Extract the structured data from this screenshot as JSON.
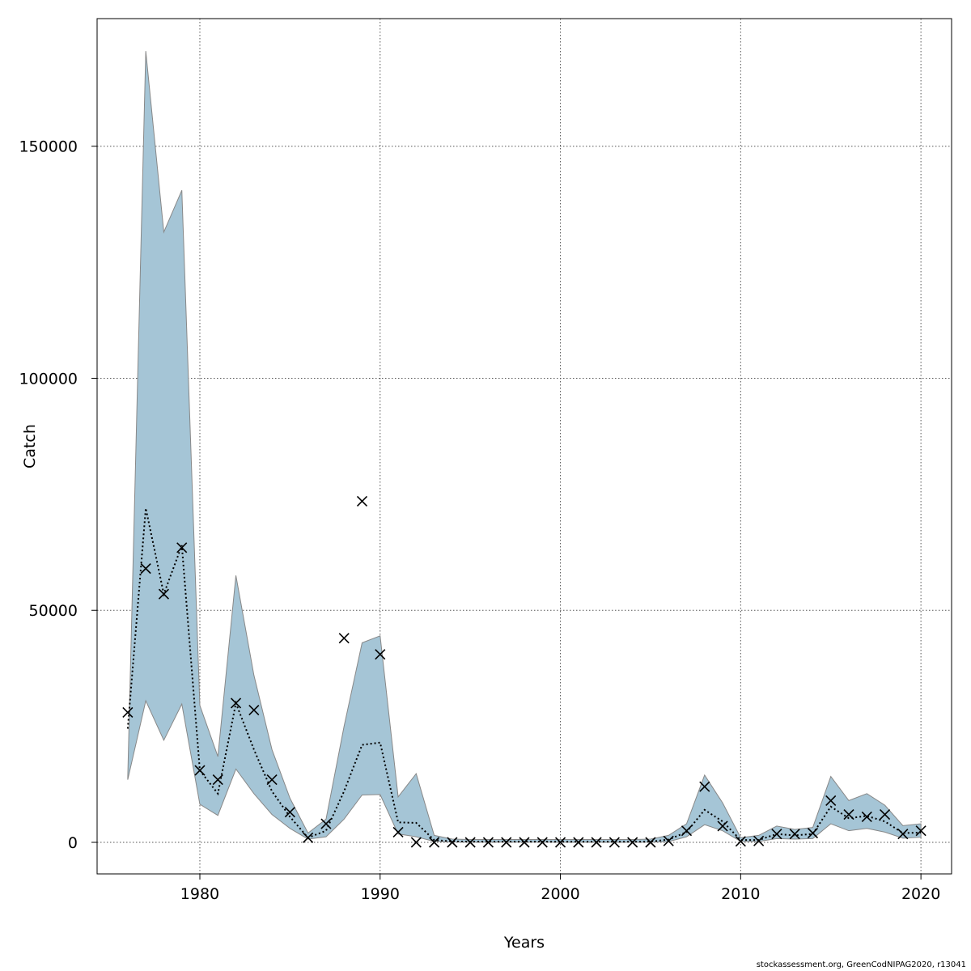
{
  "chart_data": {
    "type": "line",
    "xlabel": "Years",
    "ylabel": "Catch",
    "xlim": [
      1974.3,
      2021.7
    ],
    "ylim": [
      -6800,
      177500
    ],
    "x_ticks": [
      1980,
      1990,
      2000,
      2010,
      2020
    ],
    "y_ticks": [
      0,
      50000,
      100000,
      150000
    ],
    "grid": true,
    "colors": {
      "band": "#a5c5d6",
      "band_edge": "#888888",
      "line": "#000000",
      "grid": "#555555"
    },
    "series": [
      {
        "kind": "band",
        "x": [
          1976,
          1977,
          1978,
          1979,
          1980,
          1981,
          1982,
          1983,
          1984,
          1985,
          1986,
          1987,
          1988,
          1989,
          1990,
          1991,
          1992,
          1993,
          1994,
          1995,
          1996,
          1997,
          1998,
          1999,
          2000,
          2001,
          2002,
          2003,
          2004,
          2005,
          2006,
          2007,
          2008,
          2009,
          2010,
          2011,
          2012,
          2013,
          2014,
          2015,
          2016,
          2017,
          2018,
          2019,
          2020
        ],
        "lower": [
          13500,
          30500,
          22000,
          29800,
          8200,
          5800,
          15800,
          10500,
          6000,
          3000,
          700,
          1200,
          5000,
          10200,
          10300,
          1800,
          1200,
          200,
          80,
          50,
          50,
          40,
          40,
          40,
          30,
          30,
          30,
          30,
          30,
          40,
          150,
          1200,
          3800,
          2500,
          200,
          200,
          800,
          700,
          800,
          4000,
          2500,
          3000,
          2200,
          900,
          1100
        ],
        "upper": [
          14000,
          170500,
          131500,
          140500,
          29500,
          18500,
          57500,
          36000,
          20000,
          9500,
          2000,
          5000,
          25000,
          43000,
          44500,
          9800,
          14800,
          1500,
          700,
          600,
          600,
          600,
          600,
          600,
          600,
          600,
          600,
          600,
          600,
          700,
          1500,
          4000,
          14500,
          8500,
          1000,
          1500,
          3500,
          2800,
          3200,
          14200,
          9000,
          10500,
          8000,
          3600,
          4000
        ]
      },
      {
        "kind": "line",
        "style": "dotted",
        "x": [
          1976,
          1977,
          1978,
          1979,
          1980,
          1981,
          1982,
          1983,
          1984,
          1985,
          1986,
          1987,
          1988,
          1989,
          1990,
          1991,
          1992,
          1993,
          1994,
          1995,
          1996,
          1997,
          1998,
          1999,
          2000,
          2001,
          2002,
          2003,
          2004,
          2005,
          2006,
          2007,
          2008,
          2009,
          2010,
          2011,
          2012,
          2013,
          2014,
          2015,
          2016,
          2017,
          2018,
          2019,
          2020
        ],
        "y": [
          24500,
          72000,
          53500,
          64000,
          15500,
          10500,
          30000,
          20000,
          11000,
          5500,
          1000,
          2500,
          11000,
          21000,
          21500,
          4300,
          4200,
          500,
          200,
          150,
          150,
          150,
          150,
          150,
          120,
          120,
          120,
          120,
          120,
          150,
          600,
          2200,
          7000,
          4500,
          500,
          500,
          1800,
          1500,
          1800,
          7700,
          5200,
          5700,
          4500,
          2000,
          2100
        ]
      },
      {
        "kind": "points",
        "marker": "x",
        "x": [
          1976,
          1977,
          1978,
          1979,
          1980,
          1981,
          1982,
          1983,
          1984,
          1985,
          1986,
          1987,
          1988,
          1989,
          1990,
          1991,
          1992,
          1993,
          1994,
          1995,
          1996,
          1997,
          1998,
          1999,
          2000,
          2001,
          2002,
          2003,
          2004,
          2005,
          2006,
          2007,
          2008,
          2009,
          2010,
          2011,
          2012,
          2013,
          2014,
          2015,
          2016,
          2017,
          2018,
          2019,
          2020
        ],
        "y": [
          28000,
          59000,
          53500,
          63500,
          15500,
          13500,
          30000,
          28500,
          13500,
          6500,
          1000,
          4000,
          44000,
          73500,
          40500,
          2200,
          0,
          0,
          0,
          0,
          0,
          0,
          0,
          0,
          0,
          0,
          0,
          0,
          0,
          0,
          300,
          2500,
          12000,
          3500,
          200,
          300,
          1800,
          1800,
          2000,
          9000,
          6000,
          5500,
          6000,
          1800,
          2500
        ]
      }
    ]
  },
  "footer": {
    "credit": "stockassessment.org, GreenCodNIPAG2020, r13041"
  }
}
